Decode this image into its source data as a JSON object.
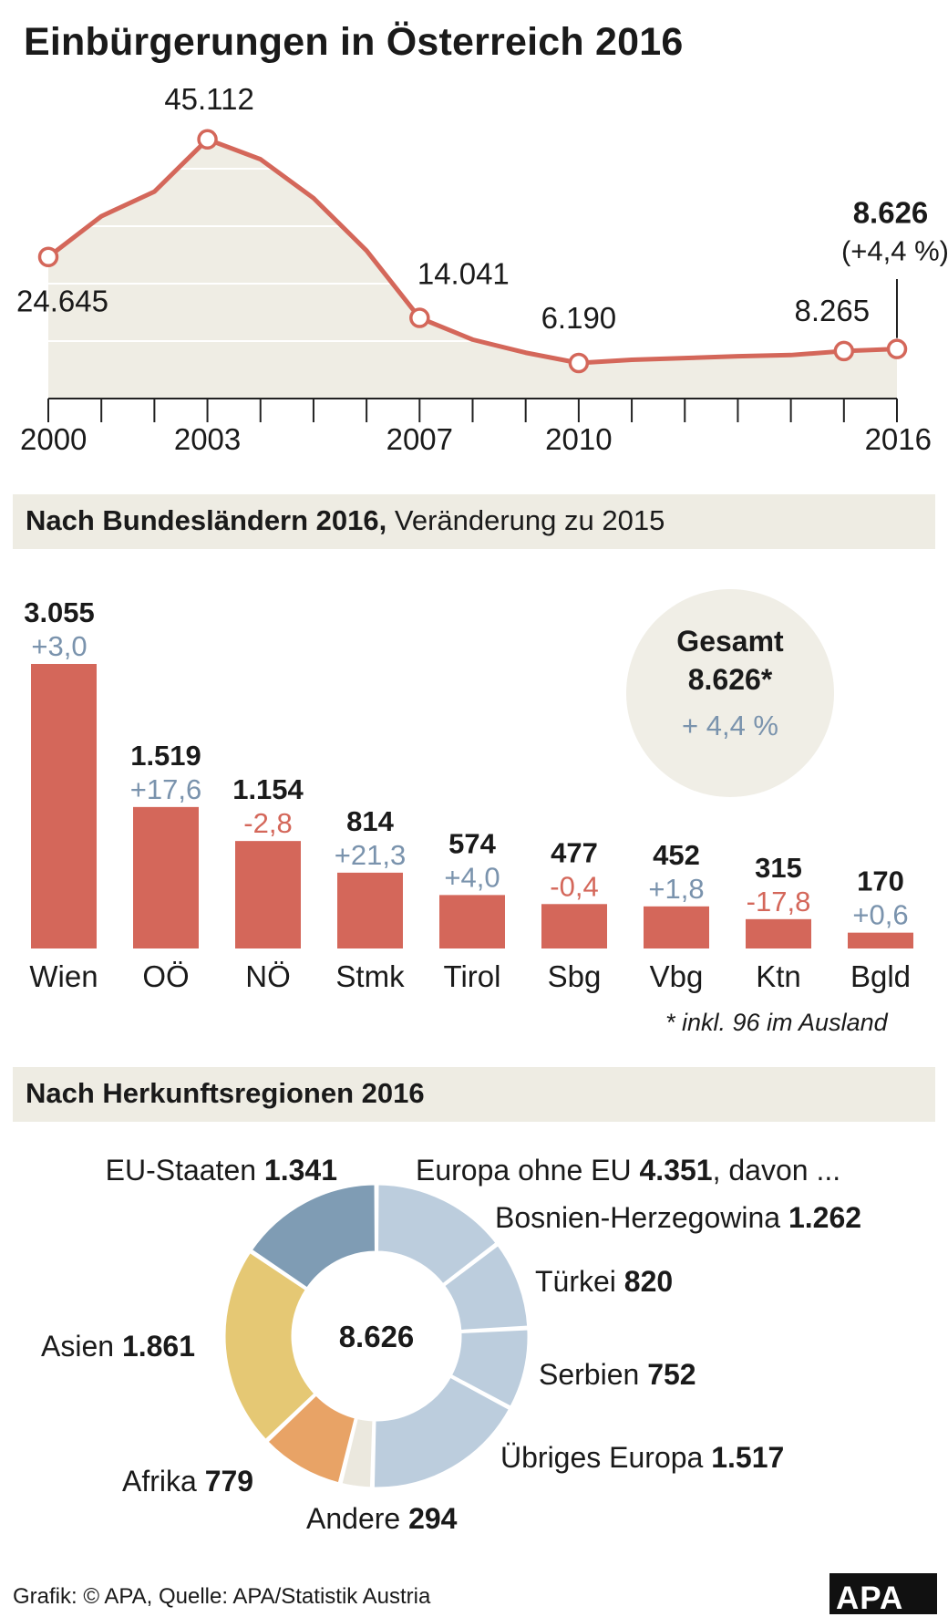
{
  "title": "Einbürgerungen in Österreich 2016",
  "colors": {
    "accent": "#d4675a",
    "positive": "#7a93ad",
    "negative": "#d4675a",
    "area_fill": "#efede4",
    "section_bg": "#eeece3",
    "circle_bg": "#f0eee6"
  },
  "chart_data": [
    {
      "type": "area",
      "title": "Einbürgerungen in Österreich 2016",
      "x": [
        2000,
        2001,
        2002,
        2003,
        2004,
        2005,
        2006,
        2007,
        2008,
        2009,
        2010,
        2011,
        2012,
        2013,
        2014,
        2015,
        2016
      ],
      "y": [
        24645,
        31731,
        36011,
        45112,
        41645,
        34876,
        25746,
        14041,
        10258,
        7978,
        6190,
        6754,
        7043,
        7354,
        7570,
        8265,
        8626
      ],
      "ylim": [
        0,
        50000
      ],
      "x_tick_labels": [
        "2000",
        "2003",
        "2007",
        "2010",
        "2016"
      ],
      "annotations": [
        {
          "year": 2000,
          "label": "24.645"
        },
        {
          "year": 2003,
          "label": "45.112"
        },
        {
          "year": 2007,
          "label": "14.041"
        },
        {
          "year": 2010,
          "label": "6.190"
        },
        {
          "year": 2015,
          "label": "8.265"
        },
        {
          "year": 2016,
          "label": "8.626",
          "sublabel": "(+4,4 %)"
        }
      ]
    },
    {
      "type": "bar",
      "title": "Nach Bundesländern 2016, Veränderung zu 2015",
      "categories": [
        "Wien",
        "OÖ",
        "NÖ",
        "Stmk",
        "Tirol",
        "Sbg",
        "Vbg",
        "Ktn",
        "Bgld"
      ],
      "values": [
        3055,
        1519,
        1154,
        814,
        574,
        477,
        452,
        315,
        170
      ],
      "value_labels": [
        "3.055",
        "1.519",
        "1.154",
        "814",
        "574",
        "477",
        "452",
        "315",
        "170"
      ],
      "changes": [
        3.0,
        17.6,
        -2.8,
        21.3,
        4.0,
        -0.4,
        1.8,
        -17.8,
        0.6
      ],
      "change_labels": [
        "+3,0",
        "+17,6",
        "-2,8",
        "+21,3",
        "+4,0",
        "-0,4",
        "+1,8",
        "-17,8",
        "+0,6"
      ],
      "total": {
        "title": "Gesamt",
        "value": "8.626*",
        "change": "+ 4,4 %"
      },
      "note": "* inkl. 96 im Ausland"
    },
    {
      "type": "pie",
      "title": "Nach Herkunftsregionen 2016",
      "center_label": "8.626",
      "slices": [
        {
          "name": "Bosnien-Herzegowina",
          "value": 1262,
          "label": "1.262",
          "color": "#bccddd"
        },
        {
          "name": "Türkei",
          "value": 820,
          "label": "820",
          "color": "#bccddd"
        },
        {
          "name": "Serbien",
          "value": 752,
          "label": "752",
          "color": "#bccddd"
        },
        {
          "name": "Übriges Europa",
          "value": 1517,
          "label": "1.517",
          "color": "#bccddd"
        },
        {
          "name": "Andere",
          "value": 294,
          "label": "294",
          "color": "#ebe8de"
        },
        {
          "name": "Afrika",
          "value": 779,
          "label": "779",
          "color": "#e8a366"
        },
        {
          "name": "Asien",
          "value": 1861,
          "label": "1.861",
          "color": "#e5c874"
        },
        {
          "name": "EU-Staaten",
          "value": 1341,
          "label": "1.341",
          "color": "#7f9cb4"
        }
      ],
      "group_label": {
        "name": "Europa ohne EU",
        "value": "4.351",
        "suffix": ", davon ..."
      }
    }
  ],
  "footer": "Grafik: © APA, Quelle: APA/Statistik Austria",
  "logo": "APA"
}
